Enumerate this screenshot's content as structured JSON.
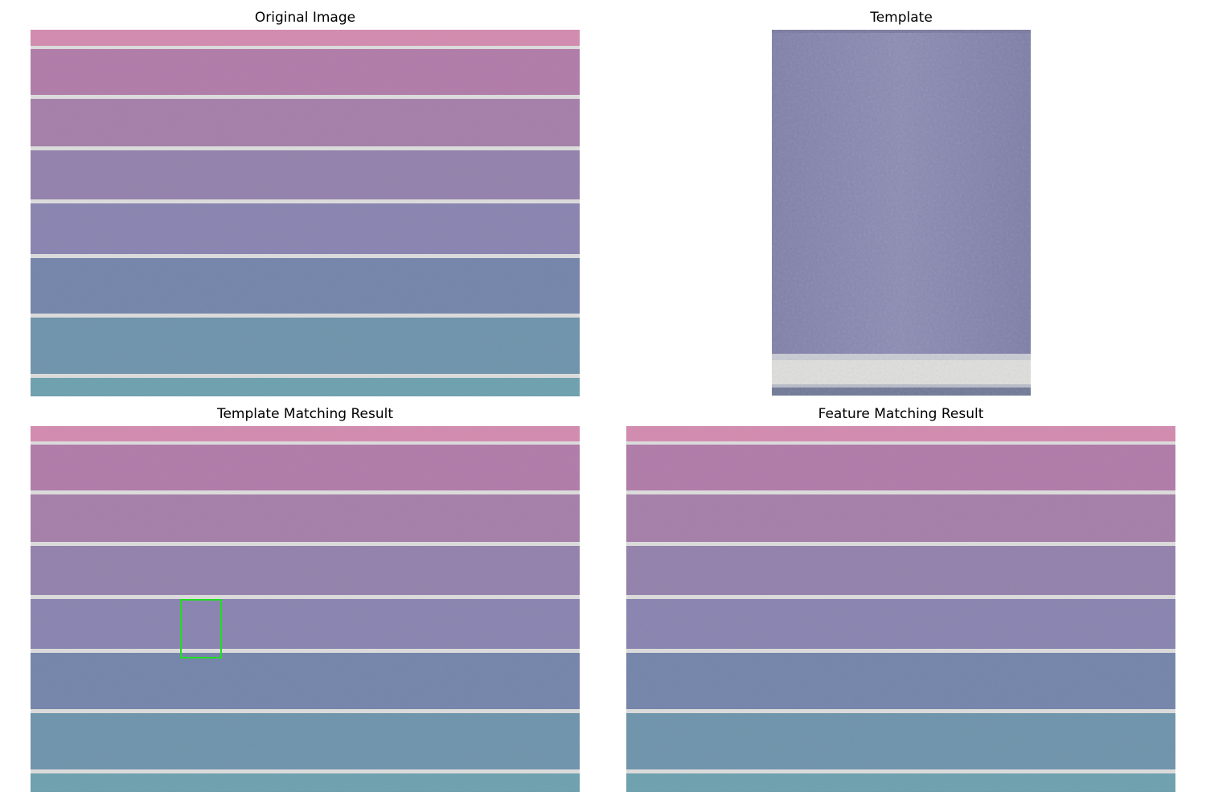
{
  "titles": {
    "original": "Original Image",
    "template": "Template",
    "template_matching": "Template Matching Result",
    "feature_matching": "Feature Matching Result"
  },
  "colors": {
    "stripe_pink": "#d28aae",
    "stripe_rose": "#b07aa8",
    "stripe_mauve": "#a47ea8",
    "stripe_lilac": "#9280ab",
    "stripe_lavender": "#8883b0",
    "stripe_periwinkle": "#7384aa",
    "stripe_steel_blue": "#6d93ab",
    "stripe_teal": "#6ca0ae",
    "divider_line": "#dcdcdc",
    "template_fill": "#8a8ab2",
    "match_box": "#22dd22"
  },
  "template_match": {
    "detected": true
  },
  "feature_match": {
    "detected": false
  }
}
